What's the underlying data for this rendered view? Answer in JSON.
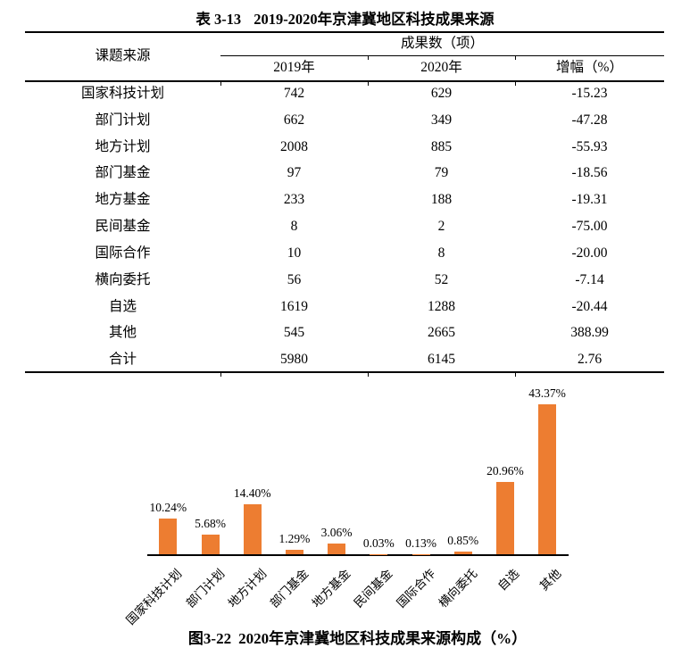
{
  "table": {
    "caption_label": "表 3-13",
    "caption_title": "2019-2020年京津冀地区科技成果来源",
    "row_header": "课题来源",
    "col_group_header": "成果数（项）",
    "columns": [
      "2019年",
      "2020年",
      "增幅（%）"
    ],
    "rows": [
      {
        "source": "国家科技计划",
        "y2019": "742",
        "y2020": "629",
        "growth": "-15.23"
      },
      {
        "source": "部门计划",
        "y2019": "662",
        "y2020": "349",
        "growth": "-47.28"
      },
      {
        "source": "地方计划",
        "y2019": "2008",
        "y2020": "885",
        "growth": "-55.93"
      },
      {
        "source": "部门基金",
        "y2019": "97",
        "y2020": "79",
        "growth": "-18.56"
      },
      {
        "source": "地方基金",
        "y2019": "233",
        "y2020": "188",
        "growth": "-19.31"
      },
      {
        "source": "民间基金",
        "y2019": "8",
        "y2020": "2",
        "growth": "-75.00"
      },
      {
        "source": "国际合作",
        "y2019": "10",
        "y2020": "8",
        "growth": "-20.00"
      },
      {
        "source": "横向委托",
        "y2019": "56",
        "y2020": "52",
        "growth": "-7.14"
      },
      {
        "source": "自选",
        "y2019": "1619",
        "y2020": "1288",
        "growth": "-20.44"
      },
      {
        "source": "其他",
        "y2019": "545",
        "y2020": "2665",
        "growth": "388.99"
      },
      {
        "source": "合计",
        "y2019": "5980",
        "y2020": "6145",
        "growth": "2.76"
      }
    ]
  },
  "figure": {
    "caption_label": "图3-22",
    "caption_title": "2020年京津冀地区科技成果来源构成（%）"
  },
  "chart_data": {
    "type": "bar",
    "categories": [
      "国家科技计划",
      "部门计划",
      "地方计划",
      "部门基金",
      "地方基金",
      "民间基金",
      "国际合作",
      "横向委托",
      "自选",
      "其他"
    ],
    "values": [
      10.24,
      5.68,
      14.4,
      1.29,
      3.06,
      0.03,
      0.13,
      0.85,
      20.96,
      43.37
    ],
    "labels": [
      "10.24%",
      "5.68%",
      "14.40%",
      "1.29%",
      "3.06%",
      "0.03%",
      "0.13%",
      "0.85%",
      "20.96%",
      "43.37%"
    ],
    "title": "图3-22 2020年京津冀地区科技成果来源构成（%）",
    "xlabel": "",
    "ylabel": "",
    "ylim": [
      0,
      45
    ],
    "grid": false,
    "legend": false,
    "bar_color": "#ED7D31",
    "axis_color": "#000000"
  },
  "colors": {
    "bar": "#ED7D31",
    "text": "#000000",
    "background": "#FFFFFF"
  }
}
